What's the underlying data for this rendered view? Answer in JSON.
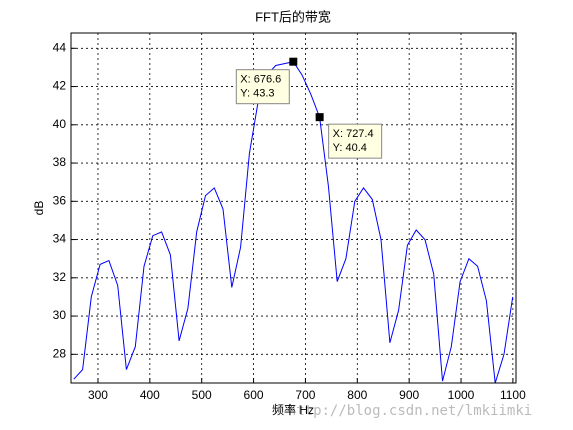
{
  "chart_data": {
    "type": "line",
    "title": "FFT后的带宽",
    "x_label": "频率 Hz",
    "y_label": "dB",
    "x": [
      253.4,
      270.3,
      287.2,
      304.2,
      321.1,
      338.0,
      354.9,
      371.9,
      388.8,
      405.7,
      422.6,
      439.6,
      456.5,
      473.4,
      490.3,
      507.3,
      524.2,
      541.1,
      558.0,
      575.0,
      591.9,
      608.8,
      625.7,
      642.7,
      659.6,
      676.6,
      693.5,
      710.4,
      727.4,
      744.3,
      761.2,
      778.1,
      795.1,
      812.0,
      828.9,
      845.8,
      862.8,
      879.7,
      896.6,
      913.5,
      930.5,
      947.4,
      964.3,
      981.2,
      998.2,
      1015.1,
      1032.0,
      1048.9,
      1065.9,
      1082.8,
      1099.7
    ],
    "series": [
      {
        "color": "#0000ff",
        "values": [
          26.7,
          27.2,
          31.0,
          32.7,
          32.9,
          31.6,
          27.2,
          28.4,
          32.6,
          34.2,
          34.4,
          33.2,
          28.7,
          30.4,
          34.4,
          36.3,
          36.7,
          35.6,
          31.5,
          33.6,
          38.5,
          41.2,
          42.6,
          43.1,
          43.2,
          43.3,
          42.6,
          41.6,
          40.4,
          36.8,
          31.8,
          33.0,
          36.0,
          36.7,
          36.1,
          34.0,
          28.6,
          30.3,
          33.7,
          34.5,
          34.0,
          32.2,
          26.6,
          28.4,
          31.8,
          33.0,
          32.6,
          30.8,
          26.5,
          28.0,
          31.0
        ]
      }
    ],
    "xlim": [
      248,
      1106
    ],
    "ylim": [
      26.5,
      44.8
    ],
    "xticks": [
      300,
      400,
      500,
      600,
      700,
      800,
      900,
      1000,
      1100
    ],
    "yticks": [
      28,
      30,
      32,
      34,
      36,
      38,
      40,
      42,
      44
    ],
    "grid": true,
    "datatips": [
      {
        "x": 676.6,
        "y": 43.3,
        "lines": [
          "X: 676.6",
          "Y: 43.3"
        ]
      },
      {
        "x": 727.4,
        "y": 40.4,
        "lines": [
          "X: 727.4",
          "Y: 40.4"
        ]
      }
    ],
    "watermark": "http://blog.csdn.net/lmkiimki"
  }
}
